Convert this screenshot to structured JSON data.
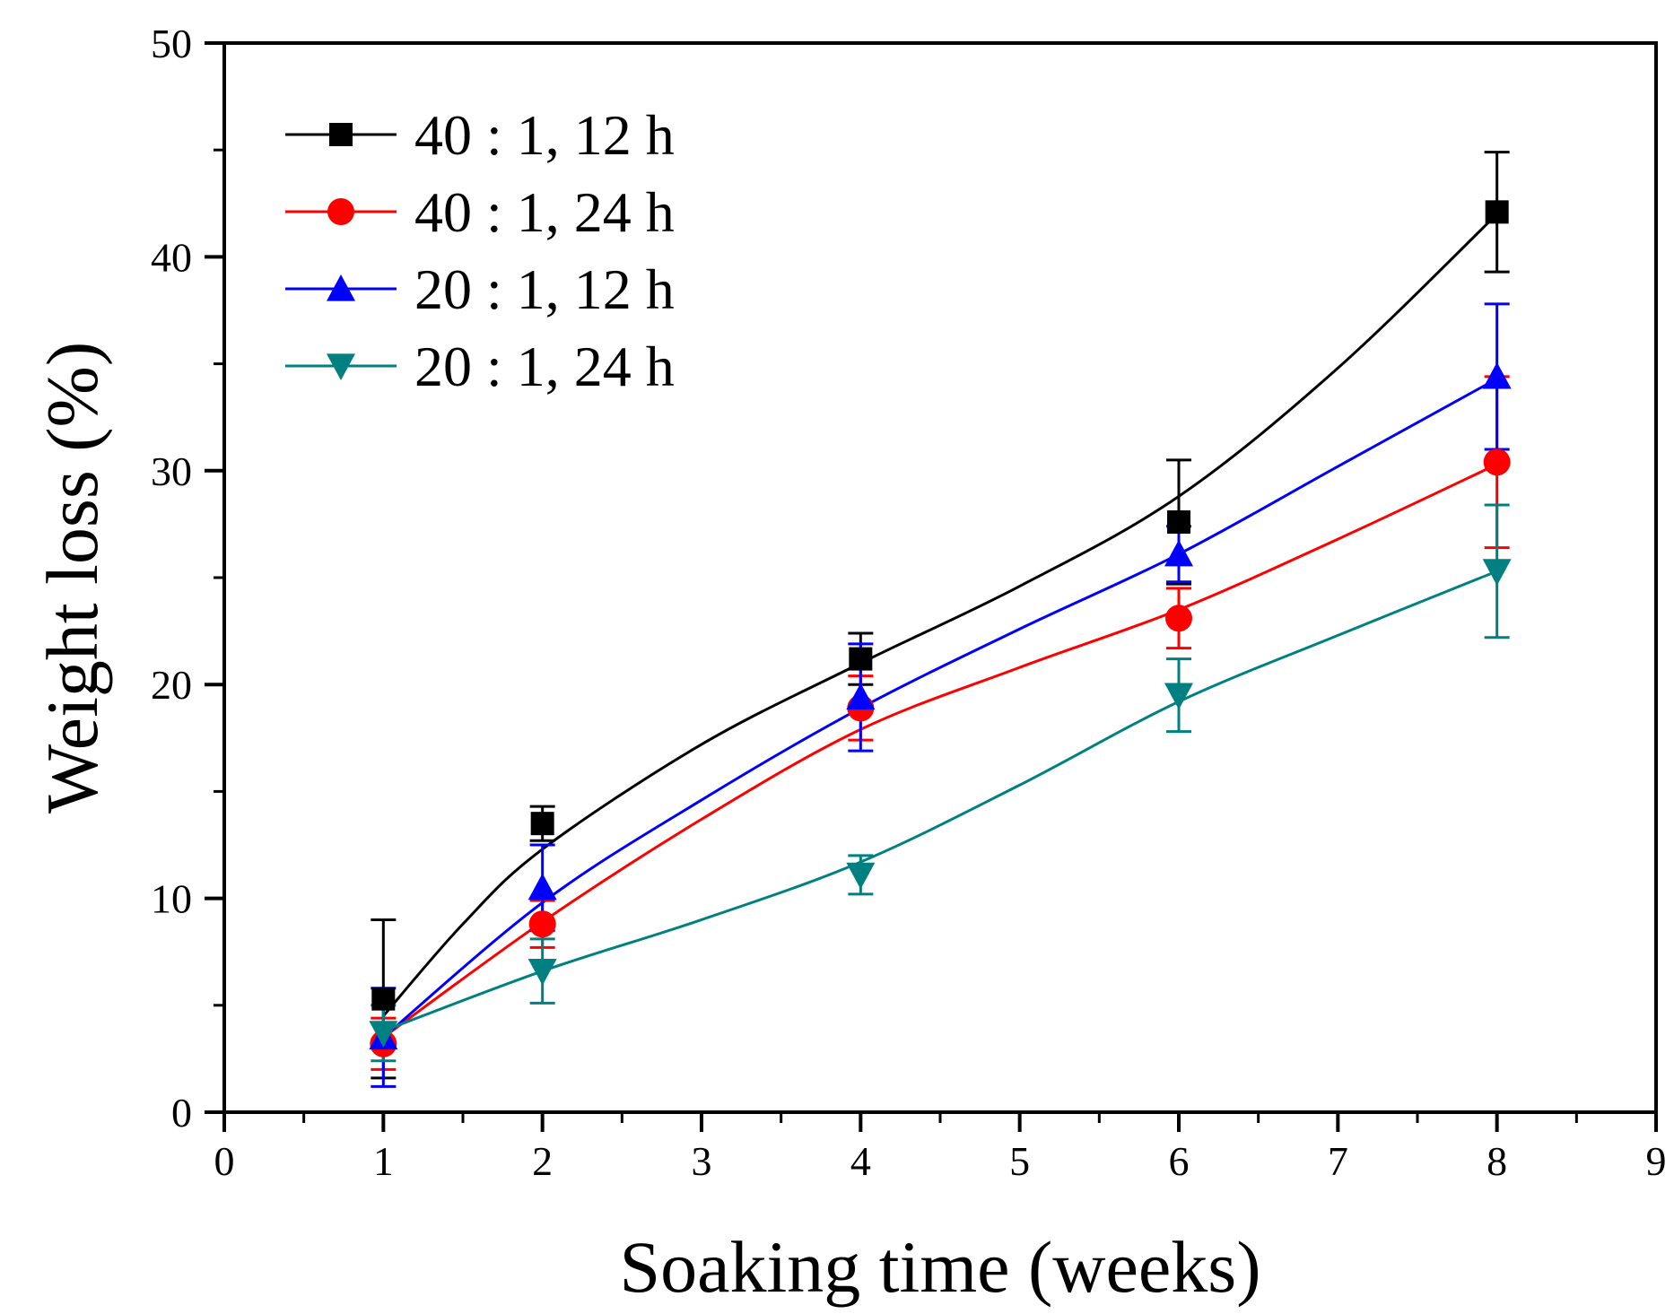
{
  "chart_data": {
    "type": "line",
    "title": "",
    "xlabel": "Soaking time (weeks)",
    "ylabel": "Weight loss (%)",
    "xlim": [
      0,
      9
    ],
    "ylim": [
      0,
      50
    ],
    "xticks": [
      "0",
      "1",
      "2",
      "3",
      "4",
      "5",
      "6",
      "7",
      "8",
      "9"
    ],
    "yticks": [
      "0",
      "10",
      "20",
      "30",
      "40",
      "50"
    ],
    "grid": false,
    "legend_position": "top-left",
    "x": [
      1,
      2,
      4,
      6,
      8
    ],
    "series": [
      {
        "name": "40 : 1, 12 h",
        "color": "#000000",
        "marker": "square",
        "values": [
          5.3,
          13.5,
          21.2,
          27.6,
          42.1
        ],
        "errors": [
          3.7,
          0.8,
          1.2,
          2.9,
          2.8
        ],
        "fit": [
          [
            1,
            4.5
          ],
          [
            1.5,
            8.8
          ],
          [
            2,
            12.3
          ],
          [
            3,
            17.2
          ],
          [
            4,
            21.0
          ],
          [
            5,
            24.6
          ],
          [
            6,
            28.8
          ],
          [
            7,
            34.8
          ],
          [
            8,
            42.0
          ]
        ]
      },
      {
        "name": "40 : 1, 24 h",
        "color": "#ff0000",
        "marker": "circle",
        "values": [
          3.2,
          8.8,
          18.9,
          23.1,
          30.4
        ],
        "errors": [
          1.2,
          1.1,
          1.5,
          1.4,
          4.0
        ],
        "fit": [
          [
            1,
            3.5
          ],
          [
            2,
            8.9
          ],
          [
            3,
            13.7
          ],
          [
            4,
            17.9
          ],
          [
            5,
            20.8
          ],
          [
            6,
            23.5
          ],
          [
            7,
            26.8
          ],
          [
            8,
            30.3
          ]
        ]
      },
      {
        "name": "20 : 1, 12 h",
        "color": "#0000ff",
        "marker": "triangle-up",
        "values": [
          3.5,
          10.5,
          19.4,
          26.1,
          34.4
        ],
        "errors": [
          2.3,
          2.0,
          2.5,
          1.3,
          3.4
        ],
        "fit": [
          [
            1,
            3.5
          ],
          [
            2,
            9.8
          ],
          [
            3,
            14.6
          ],
          [
            4,
            18.9
          ],
          [
            5,
            22.6
          ],
          [
            6,
            26.1
          ],
          [
            7,
            30.2
          ],
          [
            8,
            34.3
          ]
        ]
      },
      {
        "name": "20 : 1, 24 h",
        "color": "#008080",
        "marker": "triangle-down",
        "values": [
          3.7,
          6.6,
          11.1,
          19.5,
          25.3
        ],
        "errors": [
          1.3,
          1.5,
          0.9,
          1.7,
          3.1
        ],
        "fit": [
          [
            1,
            3.8
          ],
          [
            2,
            6.6
          ],
          [
            3,
            9.0
          ],
          [
            4,
            11.7
          ],
          [
            5,
            15.3
          ],
          [
            6,
            19.2
          ],
          [
            7,
            22.3
          ],
          [
            8,
            25.3
          ]
        ]
      }
    ]
  }
}
